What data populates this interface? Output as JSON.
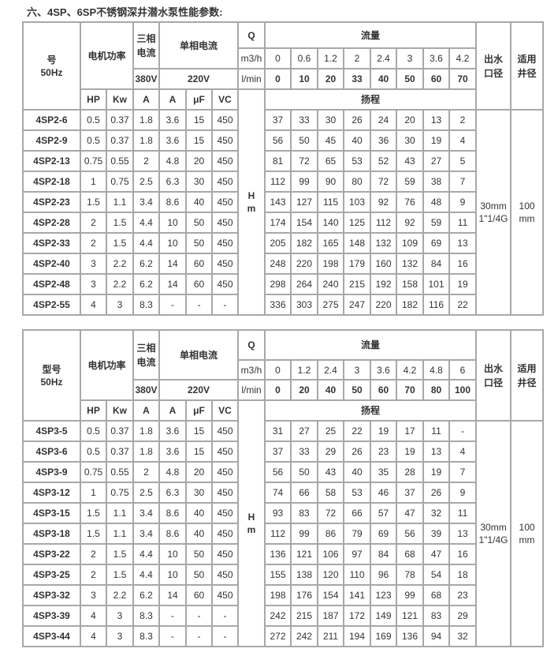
{
  "title": "六、4SP、6SP不锈钢深井潜水泵性能参数:",
  "tables": [
    {
      "model_header": "号",
      "freq": "50Hz",
      "motor_power": "电机功率",
      "three_phase_current": "三相电流",
      "single_phase_current": "单相电流",
      "q": "Q",
      "flow": "流量",
      "outlet": "出水口径",
      "well": "适用井径",
      "m3h_label": "m3/h",
      "lmin_label": "l/min",
      "v380": "380V",
      "v220": "220V",
      "sub_headers": [
        "HP",
        "Kw",
        "A",
        "A",
        "μF",
        "VC"
      ],
      "head": "扬程",
      "h_unit": [
        "H",
        "m"
      ],
      "m3h": [
        "0",
        "0.6",
        "1.2",
        "2",
        "2.4",
        "3",
        "3.6",
        "4.2"
      ],
      "lmin": [
        "0",
        "10",
        "20",
        "33",
        "40",
        "50",
        "60",
        "70"
      ],
      "outlet_value": [
        "30mm",
        "1\"1/4G"
      ],
      "well_value": [
        "100",
        "mm"
      ],
      "rows": [
        {
          "model": "4SP2-6",
          "specs": [
            "0.5",
            "0.37",
            "1.8",
            "3.6",
            "15",
            "450"
          ],
          "heads": [
            "37",
            "33",
            "30",
            "26",
            "24",
            "20",
            "13",
            "2"
          ]
        },
        {
          "model": "4SP2-9",
          "specs": [
            "0.5",
            "0.37",
            "1.8",
            "3.6",
            "15",
            "450"
          ],
          "heads": [
            "56",
            "50",
            "45",
            "40",
            "36",
            "30",
            "19",
            "4"
          ]
        },
        {
          "model": "4SP2-13",
          "specs": [
            "0.75",
            "0.55",
            "2",
            "4.8",
            "20",
            "450"
          ],
          "heads": [
            "81",
            "72",
            "65",
            "53",
            "52",
            "43",
            "27",
            "5"
          ]
        },
        {
          "model": "4SP2-18",
          "specs": [
            "1",
            "0.75",
            "2.5",
            "6.3",
            "30",
            "450"
          ],
          "heads": [
            "112",
            "99",
            "90",
            "80",
            "72",
            "59",
            "38",
            "7"
          ]
        },
        {
          "model": "4SP2-23",
          "specs": [
            "1.5",
            "1.1",
            "3.4",
            "8.6",
            "40",
            "450"
          ],
          "heads": [
            "143",
            "127",
            "115",
            "103",
            "92",
            "76",
            "48",
            "9"
          ]
        },
        {
          "model": "4SP2-28",
          "specs": [
            "2",
            "1.5",
            "4.4",
            "10",
            "50",
            "450"
          ],
          "heads": [
            "174",
            "154",
            "140",
            "125",
            "112",
            "92",
            "59",
            "11"
          ]
        },
        {
          "model": "4SP2-33",
          "specs": [
            "2",
            "1.5",
            "4.4",
            "10",
            "50",
            "450"
          ],
          "heads": [
            "205",
            "182",
            "165",
            "148",
            "132",
            "109",
            "69",
            "13"
          ]
        },
        {
          "model": "4SP2-40",
          "specs": [
            "3",
            "2.2",
            "6.2",
            "14",
            "60",
            "450"
          ],
          "heads": [
            "248",
            "220",
            "198",
            "179",
            "160",
            "132",
            "84",
            "16"
          ]
        },
        {
          "model": "4SP2-48",
          "specs": [
            "3",
            "2.2",
            "6.2",
            "14",
            "60",
            "450"
          ],
          "heads": [
            "298",
            "264",
            "240",
            "215",
            "192",
            "158",
            "101",
            "19"
          ]
        },
        {
          "model": "4SP2-55",
          "specs": [
            "4",
            "3",
            "8.3",
            "-",
            "-",
            "-"
          ],
          "heads": [
            "336",
            "303",
            "275",
            "247",
            "220",
            "182",
            "116",
            "22"
          ]
        }
      ]
    },
    {
      "model_header": "型号",
      "freq": "50Hz",
      "motor_power": "电机功率",
      "three_phase_current": "三相电流",
      "single_phase_current": "单相电流",
      "q": "Q",
      "flow": "流量",
      "outlet": "出水口径",
      "well": "适用井径",
      "m3h_label": "m3/h",
      "lmin_label": "l/min",
      "v380": "380V",
      "v220": "220V",
      "sub_headers": [
        "HP",
        "Kw",
        "A",
        "A",
        "μF",
        "VC"
      ],
      "head": "扬程",
      "h_unit": [
        "H",
        "m"
      ],
      "m3h": [
        "0",
        "1.2",
        "2.4",
        "3",
        "3.6",
        "4.2",
        "4.8",
        "6"
      ],
      "lmin": [
        "0",
        "20",
        "40",
        "50",
        "60",
        "70",
        "80",
        "100"
      ],
      "outlet_value": [
        "30mm",
        "1\"1/4G"
      ],
      "well_value": [
        "100",
        "mm"
      ],
      "rows": [
        {
          "model": "4SP3-5",
          "specs": [
            "0.5",
            "0.37",
            "1.8",
            "3.6",
            "15",
            "450"
          ],
          "heads": [
            "31",
            "27",
            "25",
            "22",
            "19",
            "17",
            "11",
            "-"
          ]
        },
        {
          "model": "4SP3-6",
          "specs": [
            "0.5",
            "0.37",
            "1.8",
            "3.6",
            "15",
            "450"
          ],
          "heads": [
            "37",
            "33",
            "29",
            "26",
            "23",
            "19",
            "13",
            "4"
          ]
        },
        {
          "model": "4SP3-9",
          "specs": [
            "0.75",
            "0.55",
            "2",
            "4.8",
            "20",
            "450"
          ],
          "heads": [
            "56",
            "50",
            "43",
            "40",
            "35",
            "28",
            "19",
            "7"
          ]
        },
        {
          "model": "4SP3-12",
          "specs": [
            "1",
            "0.75",
            "2.5",
            "6.3",
            "30",
            "450"
          ],
          "heads": [
            "74",
            "66",
            "58",
            "53",
            "46",
            "37",
            "26",
            "9"
          ]
        },
        {
          "model": "4SP3-15",
          "specs": [
            "1.5",
            "1.1",
            "3.4",
            "8.6",
            "40",
            "450"
          ],
          "heads": [
            "93",
            "83",
            "72",
            "66",
            "57",
            "47",
            "32",
            "11"
          ]
        },
        {
          "model": "4SP3-18",
          "specs": [
            "1.5",
            "1.1",
            "3.4",
            "8.6",
            "40",
            "450"
          ],
          "heads": [
            "112",
            "99",
            "86",
            "79",
            "69",
            "56",
            "39",
            "13"
          ]
        },
        {
          "model": "4SP3-22",
          "specs": [
            "2",
            "1.5",
            "4.4",
            "10",
            "50",
            "450"
          ],
          "heads": [
            "136",
            "121",
            "106",
            "97",
            "84",
            "68",
            "47",
            "16"
          ]
        },
        {
          "model": "4SP3-25",
          "specs": [
            "2",
            "1.5",
            "4.4",
            "10",
            "50",
            "450"
          ],
          "heads": [
            "155",
            "138",
            "120",
            "110",
            "96",
            "78",
            "54",
            "18"
          ]
        },
        {
          "model": "4SP3-32",
          "specs": [
            "3",
            "2.2",
            "6.2",
            "14",
            "60",
            "450"
          ],
          "heads": [
            "198",
            "176",
            "154",
            "141",
            "123",
            "99",
            "68",
            "23"
          ]
        },
        {
          "model": "4SP3-39",
          "specs": [
            "4",
            "3",
            "8.3",
            "-",
            "-",
            "-"
          ],
          "heads": [
            "242",
            "215",
            "187",
            "172",
            "149",
            "121",
            "83",
            "29"
          ]
        },
        {
          "model": "4SP3-44",
          "specs": [
            "4",
            "3",
            "8.3",
            "-",
            "-",
            "-"
          ],
          "heads": [
            "272",
            "242",
            "211",
            "194",
            "169",
            "136",
            "94",
            "32"
          ]
        }
      ]
    }
  ]
}
